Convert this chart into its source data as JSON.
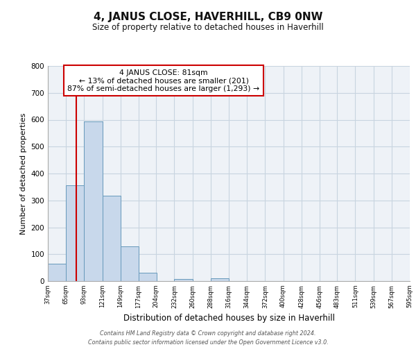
{
  "title": "4, JANUS CLOSE, HAVERHILL, CB9 0NW",
  "subtitle": "Size of property relative to detached houses in Haverhill",
  "xlabel": "Distribution of detached houses by size in Haverhill",
  "ylabel": "Number of detached properties",
  "bar_left_edges": [
    37,
    65,
    93,
    121,
    149,
    177,
    204,
    232,
    260,
    288,
    316,
    344,
    372,
    400,
    428,
    456,
    483,
    511,
    539,
    567
  ],
  "bar_heights": [
    65,
    357,
    593,
    318,
    128,
    30,
    0,
    8,
    0,
    10,
    0,
    0,
    0,
    0,
    0,
    0,
    0,
    0,
    0,
    0
  ],
  "bin_width": 28,
  "bar_color": "#c8d8eb",
  "bar_edge_color": "#6699bb",
  "property_line_x": 81,
  "property_line_color": "#cc0000",
  "annotation_line1": "4 JANUS CLOSE: 81sqm",
  "annotation_line2": "← 13% of detached houses are smaller (201)",
  "annotation_line3": "87% of semi-detached houses are larger (1,293) →",
  "annotation_box_color": "#cc0000",
  "ylim": [
    0,
    800
  ],
  "yticks": [
    0,
    100,
    200,
    300,
    400,
    500,
    600,
    700,
    800
  ],
  "xtick_labels": [
    "37sqm",
    "65sqm",
    "93sqm",
    "121sqm",
    "149sqm",
    "177sqm",
    "204sqm",
    "232sqm",
    "260sqm",
    "288sqm",
    "316sqm",
    "344sqm",
    "372sqm",
    "400sqm",
    "428sqm",
    "456sqm",
    "483sqm",
    "511sqm",
    "539sqm",
    "567sqm",
    "595sqm"
  ],
  "grid_color": "#c8d4e0",
  "background_color": "#eef2f7",
  "footer_line1": "Contains HM Land Registry data © Crown copyright and database right 2024.",
  "footer_line2": "Contains public sector information licensed under the Open Government Licence v3.0."
}
